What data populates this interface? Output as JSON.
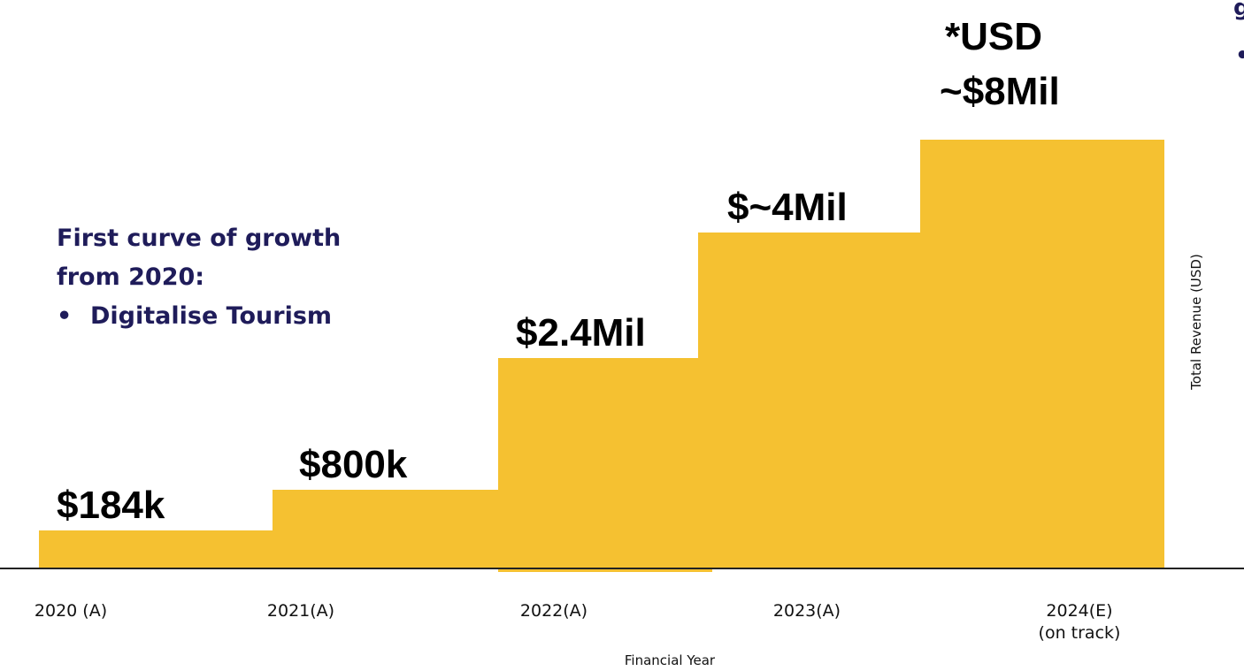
{
  "chart_data": {
    "type": "bar",
    "categories": [
      "2020 (A)",
      "2021(A)",
      "2022(A)",
      "2023(A)",
      "2024(E)"
    ],
    "category_sublabels": [
      "",
      "",
      "",
      "",
      "(on track)"
    ],
    "values": [
      0.184,
      0.8,
      2.4,
      4.0,
      8.0
    ],
    "value_units": "USD millions",
    "data_labels": [
      "$184k",
      "$800k",
      "$2.4Mil",
      "$~4Mil",
      "*USD ~$8Mil"
    ],
    "xlabel": "Financial Year",
    "ylabel": "Total Revenue (USD)",
    "bar_color": "#f5c131",
    "grid": false,
    "bar_style": "stepped, no gaps"
  },
  "annotation": {
    "line1": "First curve of growth",
    "line2": "from 2020:",
    "bullet": "•",
    "bullet_text": "Digitalise Tourism",
    "color": "#1f1c5a"
  },
  "cropped_text": {
    "top_right_glyph": "g",
    "right_bullet": "•"
  }
}
